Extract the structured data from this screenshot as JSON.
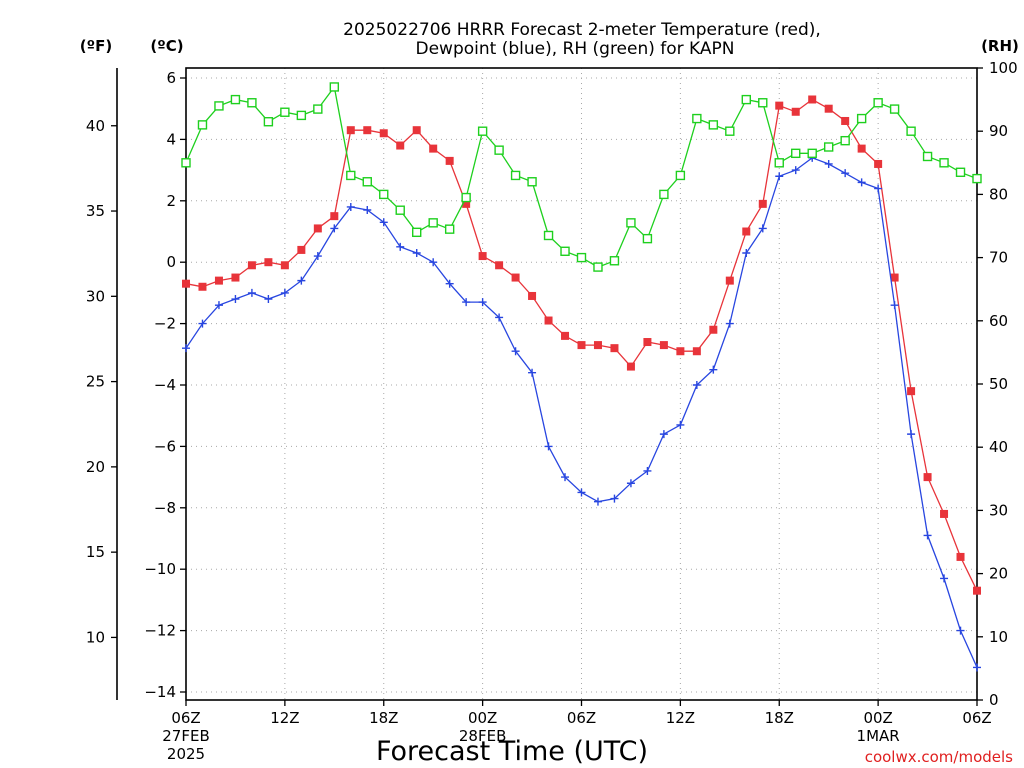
{
  "chart_data": {
    "type": "line",
    "title_line1": "2025022706 HRRR Forecast 2-meter Temperature (red),",
    "title_line2": "Dewpoint (blue), RH (green) for KAPN",
    "xlabel": "Forecast Time (UTC)",
    "unit_f": "(ºF)",
    "unit_c": "(ºC)",
    "unit_rh": "(RH)",
    "credit": "coolwx.com/models",
    "x_ticks": [
      "06Z",
      "12Z",
      "18Z",
      "00Z",
      "06Z",
      "12Z",
      "18Z",
      "00Z",
      "06Z"
    ],
    "x_date_labels": [
      "27FEB",
      "28FEB",
      "1MAR"
    ],
    "x_year_label": "2025",
    "c_ticks": [
      "6",
      "4",
      "2",
      "0",
      "−2",
      "−4",
      "−6",
      "−8",
      "−10",
      "−12",
      "−14"
    ],
    "f_ticks": [
      "40",
      "35",
      "30",
      "25",
      "20",
      "15",
      "10"
    ],
    "rh_ticks": [
      "100",
      "90",
      "80",
      "70",
      "60",
      "50",
      "40",
      "30",
      "20",
      "10",
      "0"
    ],
    "x_range_hours": [
      0,
      48
    ],
    "c_range": [
      -14.2,
      6.2
    ],
    "rh_range": [
      0,
      100
    ],
    "grid": true,
    "series": [
      {
        "name": "Temperature",
        "color": "#e8343a",
        "marker": "filled-square",
        "axis": "celsius",
        "values": [
          -0.7,
          -0.8,
          -0.6,
          -0.5,
          -0.1,
          0.0,
          -0.1,
          0.4,
          1.1,
          1.5,
          4.3,
          4.3,
          4.2,
          3.8,
          4.3,
          3.7,
          3.3,
          1.9,
          0.2,
          -0.1,
          -0.5,
          -1.1,
          -1.9,
          -2.4,
          -2.7,
          -2.7,
          -2.8,
          -3.4,
          -2.6,
          -2.7,
          -2.9,
          -2.9,
          -2.2,
          -0.6,
          1.0,
          1.9,
          5.1,
          4.9,
          5.3,
          5.0,
          4.6,
          3.7,
          3.2,
          -0.5,
          -4.2,
          -7.0,
          -8.2,
          -9.6,
          -10.7
        ]
      },
      {
        "name": "Dewpoint",
        "color": "#2846e0",
        "marker": "plus",
        "axis": "celsius",
        "values": [
          -2.8,
          -2.0,
          -1.4,
          -1.2,
          -1.0,
          -1.2,
          -1.0,
          -0.6,
          0.2,
          1.1,
          1.8,
          1.7,
          1.3,
          0.5,
          0.3,
          0.0,
          -0.7,
          -1.3,
          -1.3,
          -1.8,
          -2.9,
          -3.6,
          -6.0,
          -7.0,
          -7.5,
          -7.8,
          -7.7,
          -7.2,
          -6.8,
          -5.6,
          -5.3,
          -4.0,
          -3.5,
          -2.0,
          0.3,
          1.1,
          2.8,
          3.0,
          3.4,
          3.2,
          2.9,
          2.6,
          2.4,
          -1.4,
          -5.6,
          -8.9,
          -10.3,
          -12.0,
          -13.2
        ]
      },
      {
        "name": "RH",
        "color": "#1ed01e",
        "marker": "open-square",
        "axis": "rh",
        "values": [
          85,
          91,
          94,
          95,
          94.5,
          91.5,
          93,
          92.5,
          93.5,
          97,
          83,
          82,
          80,
          77.5,
          74,
          75.5,
          74.5,
          79.5,
          90,
          87,
          83,
          82,
          73.5,
          71,
          70,
          68.5,
          69.5,
          75.5,
          73,
          80,
          83,
          92,
          91,
          90,
          95,
          94.5,
          85,
          86.5,
          86.5,
          87.5,
          88.5,
          92,
          94.5,
          93.5,
          90,
          86,
          85,
          83.5,
          82.5
        ]
      }
    ]
  }
}
